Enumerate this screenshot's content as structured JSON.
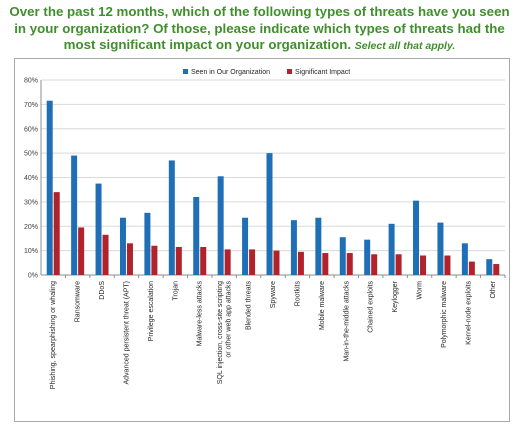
{
  "header": {
    "question": "Over the past 12 months, which of the following types of threats have you seen in your organization? Of those, please indicate which types of threats had the most significant impact on your organization.",
    "instruction": "Select all that apply."
  },
  "chart_data": {
    "type": "bar",
    "title": "",
    "xlabel": "",
    "ylabel": "",
    "ylim": [
      0,
      0.8
    ],
    "yticks": [
      "0%",
      "10%",
      "20%",
      "30%",
      "40%",
      "50%",
      "60%",
      "70%",
      "80%"
    ],
    "grid": true,
    "legend_position": "top-center",
    "categories": [
      "Phishing, spearphishing or whaling",
      "Ransomware",
      "DDoS",
      "Advanced persistent threat (APT)",
      "Privilege escalation",
      "Trojan",
      "Malware-less attacks",
      "SQL injection, cross-site scripting or other web app attacks",
      "Blended threats",
      "Spyware",
      "Rootkits",
      "Mobile malware",
      "Man-in-the-middle attacks",
      "Chained exploits",
      "Keylogger",
      "Worm",
      "Polymorphic malware",
      "Kernel-node exploits",
      "Other"
    ],
    "series": [
      {
        "name": "Seen in Our Organization",
        "color": "#1f6fb7",
        "values": [
          0.715,
          0.49,
          0.375,
          0.235,
          0.255,
          0.47,
          0.32,
          0.405,
          0.235,
          0.5,
          0.225,
          0.235,
          0.155,
          0.145,
          0.21,
          0.305,
          0.215,
          0.13,
          0.065
        ]
      },
      {
        "name": "Significant Impact",
        "color": "#b0232a",
        "values": [
          0.34,
          0.195,
          0.165,
          0.13,
          0.12,
          0.115,
          0.115,
          0.105,
          0.105,
          0.1,
          0.095,
          0.09,
          0.09,
          0.085,
          0.085,
          0.08,
          0.08,
          0.055,
          0.045
        ]
      }
    ]
  }
}
